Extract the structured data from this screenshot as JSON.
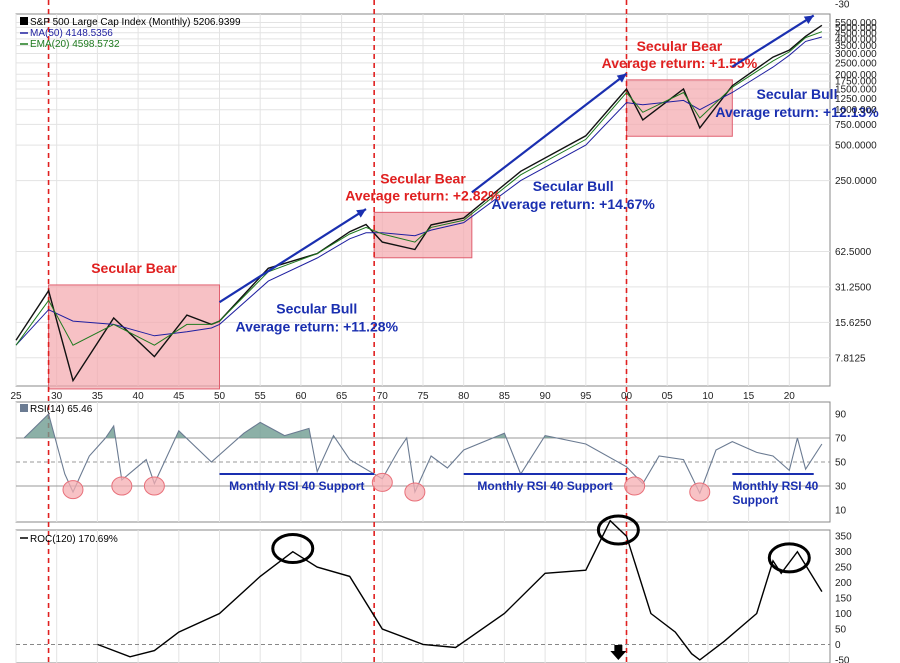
{
  "chart_data": [
    {
      "type": "line",
      "panel": "price",
      "scale": "log",
      "legend": [
        {
          "label": "S&P 500 Large Cap Index (Monthly) 5206.9399",
          "color": "#000000",
          "icon": "bar-icon"
        },
        {
          "label": "MA(50) 4148.5356",
          "color": "#1f1fa0"
        },
        {
          "label": "EMA(20) 4598.5732",
          "color": "#1e7a1e"
        }
      ],
      "y_ticks": [
        "-30",
        "5500.000",
        "5000.000",
        "4500.000",
        "4000.000",
        "3500.000",
        "3000.000",
        "2500.000",
        "2000.000",
        "1750.000",
        "1500.000",
        "1250.000",
        "1000.000",
        "750.0000",
        "500.0000",
        "250.0000",
        "62.5000",
        "31.2500",
        "15.6250",
        "7.8125"
      ],
      "y_tick_values": [
        null,
        5500,
        5000,
        4500,
        4000,
        3500,
        3000,
        2500,
        2000,
        1750,
        1500,
        1250,
        1000,
        750,
        500,
        250,
        62.5,
        31.25,
        15.625,
        7.8125
      ],
      "x": [
        1925,
        1929,
        1932,
        1937,
        1942,
        1946,
        1949,
        1950,
        1956,
        1962,
        1966,
        1968,
        1970,
        1974,
        1976,
        1980,
        1987,
        1995,
        2000,
        2002,
        2007,
        2009,
        2013,
        2018,
        2020,
        2022,
        2024
      ],
      "series": [
        {
          "values": [
            11,
            29,
            5,
            17,
            8,
            18,
            15,
            16,
            45,
            60,
            92,
            106,
            75,
            65,
            105,
            120,
            300,
            600,
            1500,
            820,
            1500,
            700,
            1600,
            2800,
            3200,
            4200,
            5207
          ]
        },
        {
          "values": [
            10,
            20,
            16,
            15,
            12,
            13,
            14,
            15,
            35,
            55,
            80,
            90,
            90,
            85,
            95,
            110,
            250,
            500,
            1150,
            1100,
            1200,
            1000,
            1400,
            2300,
            2900,
            3800,
            4149
          ]
        },
        {
          "values": [
            10,
            24,
            10,
            15,
            10,
            15,
            15,
            16,
            42,
            60,
            88,
            100,
            88,
            75,
            100,
            115,
            280,
            560,
            1400,
            950,
            1400,
            850,
            1550,
            2600,
            3100,
            4100,
            4599
          ]
        }
      ],
      "annotations": [
        {
          "type": "shaded",
          "label_lines": [
            "Secular Bear"
          ],
          "x_range": [
            1929,
            1950
          ]
        },
        {
          "type": "shaded",
          "label_lines": [
            "Secular Bear",
            "Average return:  +2.82%"
          ],
          "x_range": [
            1969,
            1981
          ]
        },
        {
          "type": "shaded",
          "label_lines": [
            "Secular Bear",
            "Average return:  +1.55%"
          ],
          "x_range": [
            2000,
            2013
          ]
        },
        {
          "type": "arrow",
          "label_lines": [
            "Secular Bull",
            "Average return:  +11.28%"
          ],
          "x_range": [
            1950,
            1968
          ]
        },
        {
          "type": "arrow",
          "label_lines": [
            "Secular Bull",
            "Average return:  +14.67%"
          ],
          "x_range": [
            1981,
            2000
          ]
        },
        {
          "type": "arrow",
          "label_lines": [
            "Secular Bull",
            "Average return:  +12.13%"
          ],
          "x_range": [
            2013,
            2023
          ]
        }
      ]
    },
    {
      "type": "line",
      "panel": "rsi",
      "legend": "RSI(14) 65.46",
      "y_ticks": [
        "90",
        "70",
        "50",
        "30",
        "10"
      ],
      "ylim": [
        0,
        100
      ],
      "reference_lines": [
        30,
        50,
        70
      ],
      "x": [
        1926,
        1929,
        1931,
        1932,
        1934,
        1936,
        1937,
        1938,
        1941,
        1942,
        1945,
        1949,
        1953,
        1955,
        1958,
        1961,
        1962,
        1964,
        1966,
        1970,
        1972,
        1973,
        1974,
        1976,
        1978,
        1980,
        1985,
        1987,
        1990,
        1995,
        2000,
        2002,
        2004,
        2007,
        2009,
        2011,
        2013,
        2016,
        2018,
        2020,
        2021,
        2022,
        2024
      ],
      "values": [
        70,
        90,
        40,
        25,
        55,
        70,
        80,
        35,
        52,
        32,
        76,
        50,
        74,
        83,
        72,
        78,
        42,
        72,
        52,
        36,
        60,
        70,
        25,
        55,
        45,
        60,
        74,
        40,
        72,
        65,
        46,
        32,
        55,
        52,
        24,
        60,
        67,
        58,
        55,
        43,
        70,
        44,
        65
      ],
      "annotations": [
        {
          "type": "support",
          "label_lines": [
            "Monthly RSI 40 Support"
          ],
          "x_range": [
            1950,
            1969
          ],
          "y": 40
        },
        {
          "type": "support",
          "label_lines": [
            "Monthly RSI 40 Support"
          ],
          "x_range": [
            1980,
            2000
          ],
          "y": 40
        },
        {
          "type": "support",
          "label_lines": [
            "Monthly RSI 40",
            "Support"
          ],
          "x_range": [
            2013,
            2023
          ],
          "y": 40
        },
        {
          "type": "circle",
          "x": 1932,
          "y": 27
        },
        {
          "type": "circle",
          "x": 1938,
          "y": 30
        },
        {
          "type": "circle",
          "x": 1942,
          "y": 30
        },
        {
          "type": "circle",
          "x": 1970,
          "y": 33
        },
        {
          "type": "circle",
          "x": 1974,
          "y": 25
        },
        {
          "type": "circle",
          "x": 2001,
          "y": 30
        },
        {
          "type": "circle",
          "x": 2009,
          "y": 25
        }
      ]
    },
    {
      "type": "line",
      "panel": "roc",
      "legend": "ROC(120) 170.69%",
      "y_ticks": [
        "350",
        "300",
        "250",
        "200",
        "150",
        "100",
        "50",
        "0",
        "-50"
      ],
      "ylim": [
        -60,
        370
      ],
      "reference_lines": [
        0
      ],
      "x": [
        1935,
        1939,
        1942,
        1945,
        1950,
        1955,
        1959,
        1962,
        1966,
        1970,
        1975,
        1979,
        1985,
        1990,
        1995,
        1998,
        2000,
        2003,
        2006,
        2008,
        2009,
        2012,
        2016,
        2018,
        2019,
        2021,
        2024
      ],
      "values": [
        0,
        -40,
        -20,
        40,
        100,
        220,
        300,
        250,
        220,
        50,
        0,
        -10,
        100,
        230,
        240,
        400,
        350,
        100,
        40,
        -30,
        -50,
        10,
        100,
        270,
        230,
        300,
        171
      ],
      "annotations": [
        {
          "type": "circle",
          "x": 1959,
          "y": 310
        },
        {
          "type": "circle",
          "x": 1999,
          "y": 370
        },
        {
          "type": "circle",
          "x": 2020,
          "y": 280
        },
        {
          "type": "arrow-down",
          "x": 1999
        }
      ]
    }
  ],
  "x_axis": {
    "tick_labels": [
      "25",
      "30",
      "35",
      "40",
      "45",
      "50",
      "55",
      "60",
      "65",
      "70",
      "75",
      "80",
      "85",
      "90",
      "95",
      "00",
      "05",
      "10",
      "15",
      "20"
    ],
    "tick_years": [
      1925,
      1930,
      1935,
      1940,
      1945,
      1950,
      1955,
      1960,
      1965,
      1970,
      1975,
      1980,
      1985,
      1990,
      1995,
      2000,
      2005,
      2010,
      2015,
      2020
    ],
    "xlim": [
      1925,
      2025
    ]
  },
  "vertical_markers": [
    1929,
    1969,
    2000
  ],
  "colors": {
    "bear_red": "#e02020",
    "bull_blue": "#1a2fb0",
    "shade": "#f4a7ad",
    "circle_fill": "#f6aeb2",
    "rsi_line": "#6b7b92",
    "rsi_fill": "#6f9c91"
  }
}
